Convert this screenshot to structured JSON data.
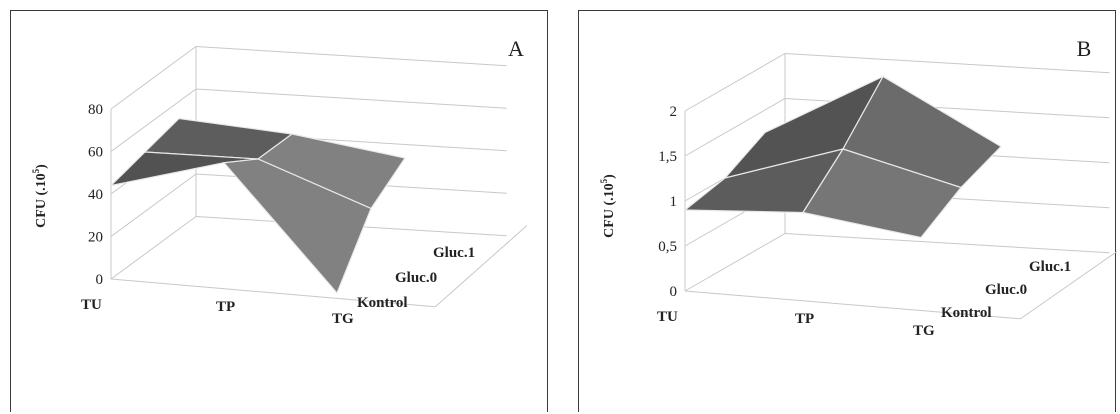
{
  "chart_data": [
    {
      "type": "surface",
      "panel_letter": "A",
      "ylabel": "CFU (.10",
      "ylabel_sup": "5",
      "ylabel_close": ")",
      "ylim": [
        0,
        80
      ],
      "yticks": [
        "0",
        "20",
        "40",
        "60",
        "80"
      ],
      "x_categories": [
        "TU",
        "TP",
        "TG"
      ],
      "depth_series": [
        "Kontrol",
        "Gluc.0",
        "Gluc.1"
      ],
      "grid": true,
      "legend": "none",
      "values": [
        [
          44,
          58,
          0
        ],
        [
          48,
          48,
          28
        ],
        [
          52,
          48,
          40
        ]
      ]
    },
    {
      "type": "surface",
      "panel_letter": "B",
      "ylabel": "CFU (.10",
      "ylabel_sup": "5",
      "ylabel_close": ")",
      "ylim": [
        0,
        2
      ],
      "yticks": [
        "0",
        "0,5",
        "1",
        "1,5",
        "2"
      ],
      "x_categories": [
        "TU",
        "TP",
        "TG"
      ],
      "depth_series": [
        "Kontrol",
        "Gluc.0",
        "Gluc.1"
      ],
      "grid": true,
      "legend": "none",
      "values": [
        [
          0.9,
          0.95,
          0.75
        ],
        [
          1.0,
          1.4,
          1.05
        ],
        [
          1.25,
          1.95,
          1.25
        ]
      ]
    }
  ]
}
